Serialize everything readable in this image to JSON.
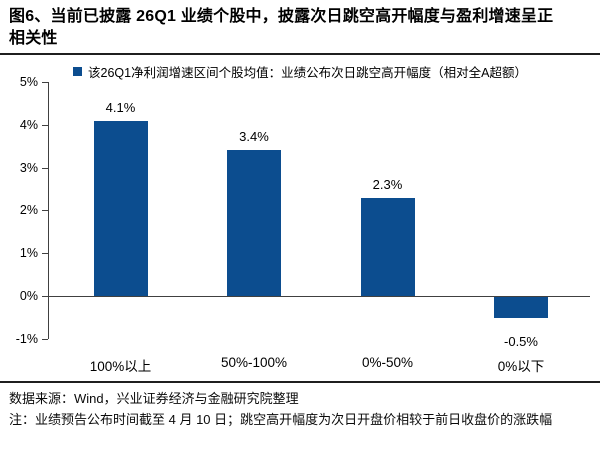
{
  "title": {
    "line1": "图6、当前已披露 26Q1 业绩个股中，披露次日跳空高开幅度与盈利增速呈正",
    "line2": "相关性"
  },
  "chart_data": {
    "type": "bar",
    "legend_label": "该26Q1净利润增速区间个股均值：业绩公布次日跳空高开幅度（相对全A超额）",
    "categories": [
      "100%以上",
      "50%-100%",
      "0%-50%",
      "0%以下"
    ],
    "values": [
      4.1,
      3.4,
      2.3,
      -0.5
    ],
    "data_labels": [
      "4.1%",
      "3.4%",
      "2.3%",
      "-0.5%"
    ],
    "ytick_labels": [
      "5%",
      "4%",
      "3%",
      "2%",
      "1%",
      "0%",
      "-1%"
    ],
    "ylim": [
      -1,
      5
    ],
    "ytick_step": 1,
    "grid": false,
    "legend_position": "top",
    "bar_color": "#0c4d8f",
    "axis_color": "#404040",
    "xlabel": "",
    "ylabel": ""
  },
  "footer": {
    "source": "数据来源：Wind，兴业证券经济与金融研究院整理",
    "note": "注：业绩预告公布时间截至 4 月 10 日；跳空高开幅度为次日开盘价相较于前日收盘价的涨跌幅"
  }
}
